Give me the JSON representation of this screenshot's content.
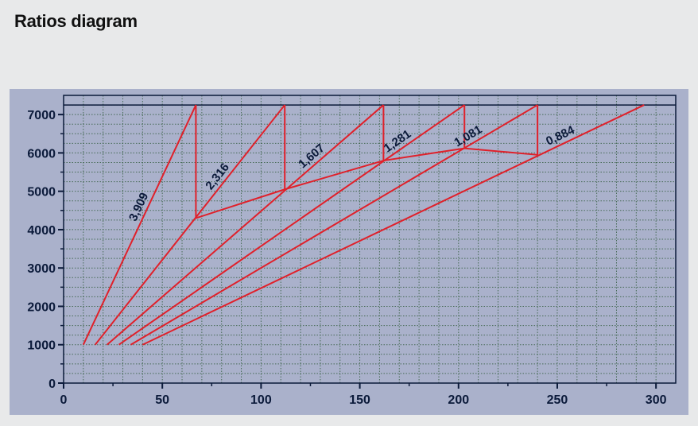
{
  "page": {
    "title": "Ratios diagram"
  },
  "chart_data": {
    "type": "line",
    "title": "",
    "xlabel": "",
    "ylabel": "",
    "xlim": [
      0,
      310
    ],
    "ylim": [
      0,
      7500
    ],
    "x_ticks": [
      0,
      50,
      100,
      150,
      200,
      250,
      300
    ],
    "y_ticks": [
      0,
      1000,
      2000,
      3000,
      4000,
      5000,
      6000,
      7000
    ],
    "y_max_line": 7250,
    "grid": true,
    "colors": {
      "line": "#e0202a",
      "grid": "#2f5a3a",
      "axis": "#0b1a3a",
      "plot_bg": "#aab1cb",
      "page_bg": "#e8e9ea"
    },
    "series": [
      {
        "label": "3,909",
        "x": [
          10,
          67
        ],
        "y": [
          1000,
          7250
        ]
      },
      {
        "label": "2,316",
        "x": [
          16,
          112
        ],
        "y": [
          1000,
          7250
        ]
      },
      {
        "label": "1,607",
        "x": [
          22,
          162
        ],
        "y": [
          1000,
          7250
        ]
      },
      {
        "label": "1,281",
        "x": [
          28,
          203
        ],
        "y": [
          1000,
          7250
        ]
      },
      {
        "label": "1,081",
        "x": [
          34,
          240
        ],
        "y": [
          1000,
          7250
        ]
      },
      {
        "label": "0,884",
        "x": [
          40,
          294
        ],
        "y": [
          1000,
          7250
        ]
      }
    ],
    "shift_drops": [
      {
        "x": 67,
        "y_from": 7250,
        "y_to": 4300
      },
      {
        "x": 112,
        "y_from": 7250,
        "y_to": 5050
      },
      {
        "x": 162,
        "y_from": 7250,
        "y_to": 5800
      },
      {
        "x": 203,
        "y_from": 7250,
        "y_to": 6120
      },
      {
        "x": 240,
        "y_from": 7250,
        "y_to": 5950
      }
    ],
    "shift_path": {
      "x": [
        67,
        112,
        162,
        203,
        240
      ],
      "y": [
        4300,
        5050,
        5800,
        6120,
        5950
      ]
    }
  }
}
